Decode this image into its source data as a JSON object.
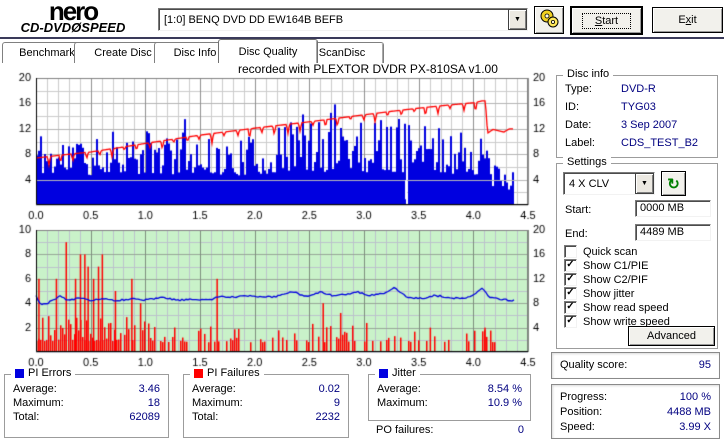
{
  "header": {
    "logo_line1": "nero",
    "logo_line2": "CD-DVDØSPEED",
    "drive_select": "[1:0]   BENQ DVD DD EW164B BEFB",
    "start_parts": [
      "S",
      "tart"
    ],
    "exit_parts": [
      "E",
      "x",
      "it"
    ]
  },
  "icons": {
    "dropdown_arrow": "▼",
    "refresh": "↻",
    "check": "✓"
  },
  "tabs": [
    {
      "label": "Benchmark",
      "active": false
    },
    {
      "label": "Create Disc",
      "active": false
    },
    {
      "label": "Disc Info",
      "active": false
    },
    {
      "label": "Disc Quality",
      "active": true
    },
    {
      "label": "ScanDisc",
      "active": false
    }
  ],
  "chart_data": [
    {
      "name": "pi-errors-and-write-speed",
      "type": "bar+line",
      "title": "recorded with PLEXTOR DVDR   PX-810SA   v1.00",
      "x_range": [
        0,
        4.5
      ],
      "x_minor": 0.1,
      "x_major": 0.5,
      "x_ticks": [
        "0.0",
        "0.5",
        "1.0",
        "1.5",
        "2.0",
        "2.5",
        "3.0",
        "3.5",
        "4.0",
        "4.5"
      ],
      "left_range": [
        0,
        20
      ],
      "left_ticks": [
        4,
        8,
        12,
        16,
        20
      ],
      "y_minor": 2,
      "right_range": [
        0,
        20
      ],
      "right_ticks": [
        4,
        8,
        12,
        16,
        20
      ],
      "bg": "#ffffff",
      "grid_minor": "#cbcbcb",
      "grid_major_v": "#8f8f8f",
      "grid_major_h": "#b4b4b4",
      "data_end": 4.37,
      "bars": {
        "name": "PI Errors",
        "color": "#0000e0",
        "seed": 11,
        "base": 3.9,
        "base_after": {
          "x": 4.17,
          "base": 1.4
        },
        "gap_x": 3.38,
        "envelope": [
          [
            0,
            13.2
          ],
          [
            0.15,
            10.5
          ],
          [
            0.3,
            12
          ],
          [
            0.45,
            10
          ],
          [
            0.6,
            11
          ],
          [
            0.75,
            14.8
          ],
          [
            0.9,
            10.5
          ],
          [
            1.05,
            12.5
          ],
          [
            1.2,
            11
          ],
          [
            1.35,
            13.8
          ],
          [
            1.5,
            12.2
          ],
          [
            1.65,
            10.5
          ],
          [
            1.8,
            10
          ],
          [
            1.95,
            11
          ],
          [
            2.1,
            11.5
          ],
          [
            2.25,
            12.5
          ],
          [
            2.4,
            16.2
          ],
          [
            2.55,
            13
          ],
          [
            2.7,
            15.5
          ],
          [
            2.85,
            18
          ],
          [
            3.0,
            13.5
          ],
          [
            3.15,
            14
          ],
          [
            3.3,
            15.2
          ],
          [
            3.45,
            12.5
          ],
          [
            3.6,
            13
          ],
          [
            3.75,
            11.5
          ],
          [
            3.9,
            12.3
          ],
          [
            4.05,
            11
          ],
          [
            4.17,
            8
          ],
          [
            4.25,
            5
          ],
          [
            4.37,
            5.5
          ]
        ]
      },
      "avg_line": {
        "y": 3.9,
        "color": "#b8b8b8"
      },
      "line": {
        "name": "Write speed",
        "color": "#ff0000",
        "seed": 5,
        "points": [
          [
            0,
            7.4
          ],
          [
            0.25,
            7.9
          ],
          [
            0.5,
            8.35
          ],
          [
            0.75,
            9.0
          ],
          [
            1.0,
            9.7
          ],
          [
            1.25,
            10.35
          ],
          [
            1.5,
            11.0
          ],
          [
            1.75,
            11.55
          ],
          [
            2.0,
            12.1
          ],
          [
            2.25,
            12.6
          ],
          [
            2.5,
            13.1
          ],
          [
            2.75,
            13.65
          ],
          [
            3.0,
            14.2
          ],
          [
            3.25,
            14.75
          ],
          [
            3.5,
            15.25
          ],
          [
            3.75,
            15.7
          ],
          [
            4.0,
            16.1
          ],
          [
            4.08,
            16.4
          ],
          [
            4.11,
            16.4
          ],
          [
            4.13,
            11.3
          ],
          [
            4.18,
            11.9
          ],
          [
            4.28,
            11.5
          ],
          [
            4.33,
            12.0
          ],
          [
            4.37,
            12.0
          ]
        ],
        "dips": {
          "interval": 0.115,
          "min": 0.5,
          "max": 1.6,
          "width": 0.014,
          "until": 4.05
        }
      }
    },
    {
      "name": "pi-failures-and-jitter",
      "type": "bar+line",
      "x_range": [
        0,
        4.5
      ],
      "x_minor": 0.1,
      "x_major": 0.5,
      "x_ticks": [
        "0.0",
        "0.5",
        "1.0",
        "1.5",
        "2.0",
        "2.5",
        "3.0",
        "3.5",
        "4.0",
        "4.5"
      ],
      "left_range": [
        0,
        10
      ],
      "left_ticks": [
        2,
        4,
        6,
        8,
        10
      ],
      "y_minor": 1,
      "right_range": [
        0,
        20
      ],
      "right_ticks": [
        4,
        8,
        12,
        16,
        20
      ],
      "bg": "#c9f2c9",
      "grid_minor": "#bcc2cc",
      "grid_major_v": "#7e8e7e",
      "grid_major_h": "#98a898",
      "data_end": 4.38,
      "bars": {
        "name": "PI Failures",
        "color": "#ff0000",
        "seed": 23,
        "segments": [
          {
            "from": 0,
            "to": 0.9,
            "p": 0.93,
            "hmin": 0.9,
            "hmax": 3.0
          },
          {
            "from": 0.9,
            "to": 1.7,
            "p": 0.55,
            "hmin": 0.8,
            "hmax": 2.6
          },
          {
            "from": 1.7,
            "to": 3.05,
            "p": 0.45,
            "hmin": 0.8,
            "hmax": 2.4
          },
          {
            "from": 3.05,
            "to": 4.38,
            "p": 0.28,
            "hmin": 0.8,
            "hmax": 1.8
          }
        ],
        "spikes": [
          [
            0.02,
            6
          ],
          [
            0.18,
            6
          ],
          [
            0.27,
            9
          ],
          [
            0.355,
            6
          ],
          [
            0.4,
            8
          ],
          [
            0.44,
            8
          ],
          [
            0.47,
            7
          ],
          [
            0.52,
            6
          ],
          [
            0.565,
            7
          ],
          [
            0.6,
            8
          ],
          [
            0.72,
            5
          ],
          [
            0.87,
            6
          ],
          [
            0.95,
            4
          ],
          [
            1.65,
            6
          ],
          [
            2.62,
            4
          ],
          [
            2.78,
            3.2
          ],
          [
            3.6,
            2
          ],
          [
            4.1,
            2
          ]
        ]
      },
      "line": {
        "name": "Jitter",
        "color": "#0000e0",
        "seed": 31,
        "noise": 0.07,
        "points": [
          [
            0,
            4.6
          ],
          [
            0.03,
            3.95
          ],
          [
            0.1,
            3.98
          ],
          [
            0.18,
            4.35
          ],
          [
            0.22,
            4.6
          ],
          [
            0.3,
            4.2
          ],
          [
            0.38,
            4.4
          ],
          [
            0.5,
            4.25
          ],
          [
            0.6,
            4.35
          ],
          [
            0.72,
            4.2
          ],
          [
            0.85,
            4.35
          ],
          [
            1.0,
            4.25
          ],
          [
            1.15,
            4.45
          ],
          [
            1.3,
            4.25
          ],
          [
            1.45,
            4.3
          ],
          [
            1.6,
            4.3
          ],
          [
            1.68,
            4.55
          ],
          [
            1.8,
            4.5
          ],
          [
            1.92,
            4.65
          ],
          [
            2.05,
            4.5
          ],
          [
            2.2,
            4.55
          ],
          [
            2.35,
            5.0
          ],
          [
            2.45,
            4.55
          ],
          [
            2.6,
            4.9
          ],
          [
            2.72,
            4.6
          ],
          [
            2.95,
            4.9
          ],
          [
            3.05,
            4.65
          ],
          [
            3.18,
            4.8
          ],
          [
            3.28,
            5.3
          ],
          [
            3.4,
            4.45
          ],
          [
            3.55,
            4.4
          ],
          [
            3.65,
            4.65
          ],
          [
            3.8,
            4.4
          ],
          [
            3.95,
            4.45
          ],
          [
            4.08,
            5.2
          ],
          [
            4.15,
            4.45
          ],
          [
            4.25,
            4.35
          ],
          [
            4.38,
            4.2
          ]
        ]
      }
    }
  ],
  "stats": {
    "pi_errors": {
      "title": "PI Errors",
      "swatch": "#0000e0",
      "rows": [
        {
          "label": "Average:",
          "value": "3.46"
        },
        {
          "label": "Maximum:",
          "value": "18"
        },
        {
          "label": "Total:",
          "value": "62089"
        }
      ]
    },
    "pi_failures": {
      "title": "PI Failures",
      "swatch": "#ff0000",
      "rows": [
        {
          "label": "Average:",
          "value": "0.02"
        },
        {
          "label": "Maximum:",
          "value": "9"
        },
        {
          "label": "Total:",
          "value": "2232"
        }
      ]
    },
    "jitter": {
      "title": "Jitter",
      "swatch": "#0000e0",
      "rows": [
        {
          "label": "Average:",
          "value": "8.54 %"
        },
        {
          "label": "Maximum:",
          "value": "10.9 %"
        }
      ]
    },
    "po_failures": {
      "label": "PO failures:",
      "value": "0"
    }
  },
  "disc_info": {
    "title": "Disc info",
    "rows": [
      {
        "label": "Type:",
        "value": "DVD-R"
      },
      {
        "label": "ID:",
        "value": "TYG03"
      },
      {
        "label": "Date:",
        "value": "3 Sep 2007"
      },
      {
        "label": "Label:",
        "value": "CDS_TEST_B2"
      }
    ]
  },
  "settings": {
    "title": "Settings",
    "speed_select": "4 X CLV",
    "start_label": "Start:",
    "start_value": "0000 MB",
    "end_label": "End:",
    "end_value": "4489 MB",
    "checkboxes": [
      {
        "label": "Quick scan",
        "checked": false,
        "mark": ""
      },
      {
        "label": "Show C1/PIE",
        "checked": true,
        "mark": "✓"
      },
      {
        "label": "Show C2/PIF",
        "checked": true,
        "mark": "✓"
      },
      {
        "label": "Show jitter",
        "checked": true,
        "mark": "✓"
      },
      {
        "label": "Show read speed",
        "checked": true,
        "mark": "✓"
      },
      {
        "label": "Show write speed",
        "checked": true,
        "mark": "✓"
      }
    ],
    "advanced_label": "Advanced"
  },
  "quality": {
    "label": "Quality score:",
    "value": "95"
  },
  "progress": {
    "rows": [
      {
        "label": "Progress:",
        "value": "100 %"
      },
      {
        "label": "Position:",
        "value": "4488 MB"
      },
      {
        "label": "Speed:",
        "value": "3.99 X"
      }
    ]
  },
  "colors": {
    "value_text": "#000080",
    "chart_green_bg": "#c9f2c9",
    "pie_blue": "#0000e0",
    "pif_red": "#ff0000"
  }
}
